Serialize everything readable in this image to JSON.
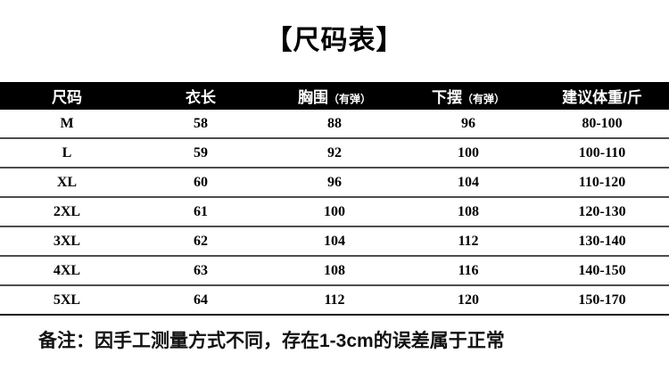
{
  "title": "【尺码表】",
  "table": {
    "columns": [
      {
        "label": "尺码",
        "sub": ""
      },
      {
        "label": "衣长",
        "sub": ""
      },
      {
        "label": "胸围",
        "sub": "（有弹）"
      },
      {
        "label": "下摆",
        "sub": "（有弹）"
      },
      {
        "label": "建议体重/斤",
        "sub": ""
      }
    ],
    "rows": [
      [
        "M",
        "58",
        "88",
        "96",
        "80-100"
      ],
      [
        "L",
        "59",
        "92",
        "100",
        "100-110"
      ],
      [
        "XL",
        "60",
        "96",
        "104",
        "110-120"
      ],
      [
        "2XL",
        "61",
        "100",
        "108",
        "120-130"
      ],
      [
        "3XL",
        "62",
        "104",
        "112",
        "130-140"
      ],
      [
        "4XL",
        "63",
        "108",
        "116",
        "140-150"
      ],
      [
        "5XL",
        "64",
        "112",
        "120",
        "150-170"
      ]
    ]
  },
  "note": "备注：因手工测量方式不同，存在1-3cm的误差属于正常",
  "colors": {
    "background": "#ffffff",
    "header_bg": "#000000",
    "header_text": "#ffffff",
    "body_text": "#000000",
    "divider": "#4d4d4d"
  }
}
